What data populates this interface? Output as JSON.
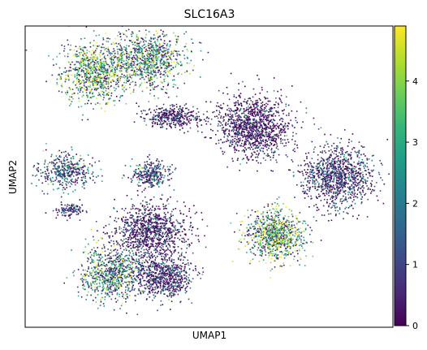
{
  "chart_data": {
    "type": "scatter",
    "title": "SLC16A3",
    "xlabel": "UMAP1",
    "ylabel": "UMAP2",
    "colorbar": {
      "colormap": "viridis",
      "range": [
        0,
        4.9
      ],
      "ticks": [
        "0",
        "1",
        "2",
        "3",
        "4"
      ],
      "stops": [
        "#440154",
        "#482878",
        "#3e4a89",
        "#31688e",
        "#26828e",
        "#1f9e89",
        "#35b779",
        "#6ece58",
        "#b5de2b",
        "#fde725"
      ]
    },
    "grid": false,
    "clusters": [
      {
        "x": 0.19,
        "y": 0.85,
        "level": 3.4
      },
      {
        "x": 0.33,
        "y": 0.89,
        "level": 3.0
      },
      {
        "x": 0.11,
        "y": 0.52,
        "level": 1.6
      },
      {
        "x": 0.34,
        "y": 0.51,
        "level": 1.6
      },
      {
        "x": 0.4,
        "y": 0.7,
        "level": 0.4
      },
      {
        "x": 0.62,
        "y": 0.67,
        "level": 0.2
      },
      {
        "x": 0.85,
        "y": 0.5,
        "level": 0.9
      },
      {
        "x": 0.12,
        "y": 0.39,
        "level": 1.1
      },
      {
        "x": 0.34,
        "y": 0.32,
        "level": 0.3
      },
      {
        "x": 0.68,
        "y": 0.31,
        "level": 3.6
      },
      {
        "x": 0.24,
        "y": 0.18,
        "level": 2.5
      },
      {
        "x": 0.38,
        "y": 0.17,
        "level": 0.7
      }
    ]
  }
}
